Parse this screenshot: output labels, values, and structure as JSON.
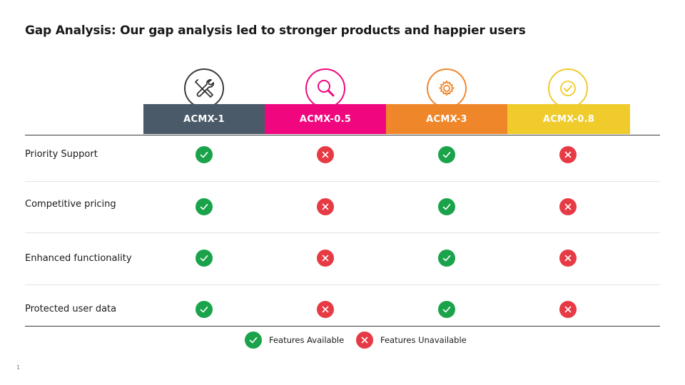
{
  "title": "Gap Analysis: Our gap analysis led to stronger products and happier users",
  "columns": [
    {
      "label": "ACMX-1",
      "color": "#4a5a68",
      "icon": "tools-icon"
    },
    {
      "label": "ACMX-0.5",
      "color": "#f0077f",
      "icon": "magnifier-icon"
    },
    {
      "label": "ACMX-3",
      "color": "#f0862a",
      "icon": "gear-icon"
    },
    {
      "label": "ACMX-0.8",
      "color": "#efcb2c",
      "icon": "check-badge-icon"
    }
  ],
  "rows": [
    {
      "label": "Priority Support",
      "values": [
        true,
        false,
        true,
        false
      ]
    },
    {
      "label": "Competitive pricing",
      "values": [
        true,
        false,
        true,
        false
      ]
    },
    {
      "label": "Enhanced functionality",
      "values": [
        true,
        false,
        true,
        false
      ]
    },
    {
      "label": "Protected user data",
      "values": [
        true,
        false,
        true,
        false
      ]
    }
  ],
  "legend": {
    "available": "Features Available",
    "unavailable": "Features Unavailable"
  },
  "page_number": "1",
  "colors": {
    "available": "#1aa34a",
    "unavailable": "#e63a45"
  }
}
